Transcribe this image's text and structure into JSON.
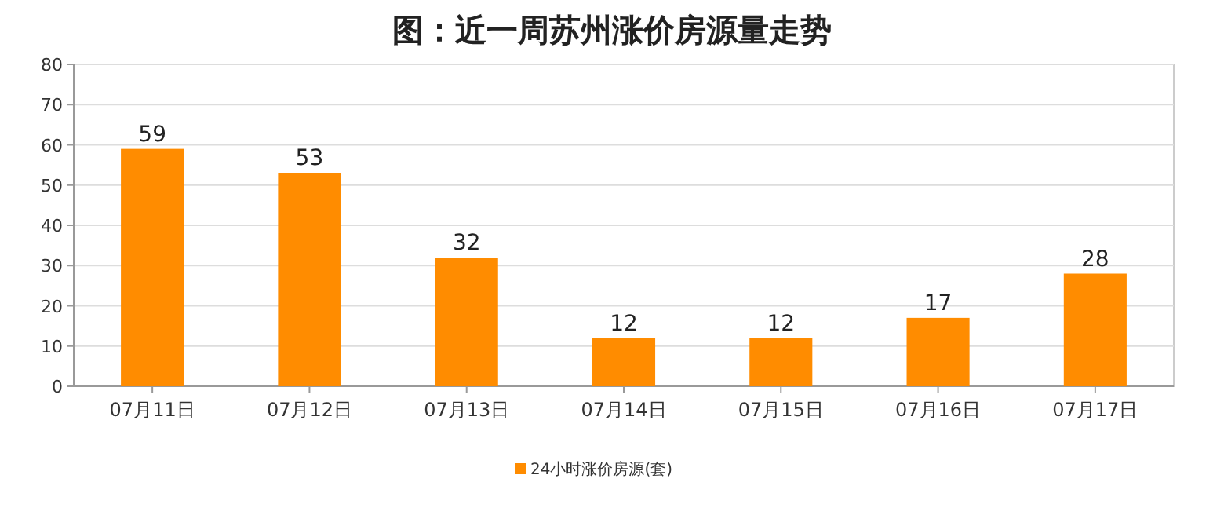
{
  "chart_data": {
    "type": "bar",
    "title": "图：近一周苏州涨价房源量走势",
    "categories": [
      "07月11日",
      "07月12日",
      "07月13日",
      "07月14日",
      "07月15日",
      "07月16日",
      "07月17日"
    ],
    "series": [
      {
        "name": "24小时涨价房源(套)",
        "color": "#ff8c00",
        "values": [
          59,
          53,
          32,
          12,
          12,
          17,
          28
        ]
      }
    ],
    "ylim": [
      0,
      80
    ],
    "yticks": [
      0,
      10,
      20,
      30,
      40,
      50,
      60,
      70,
      80
    ],
    "grid": "y",
    "legend": "bottom",
    "data_labels": true
  }
}
